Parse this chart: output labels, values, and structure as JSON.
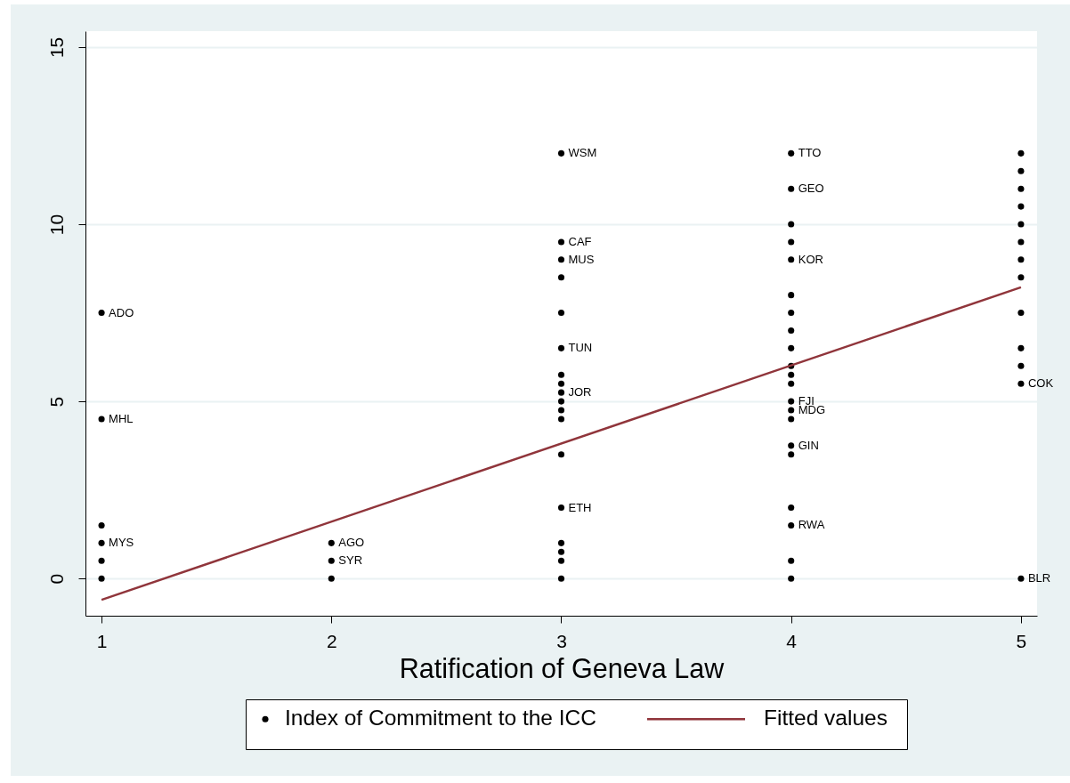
{
  "chart_data": {
    "type": "scatter",
    "xlabel": "Ratification of Geneva Law",
    "xlim": [
      0.93,
      5.07
    ],
    "ylim": [
      -1.05,
      15.45
    ],
    "xticks": [
      1,
      2,
      3,
      4,
      5
    ],
    "yticks": [
      0,
      5,
      10,
      15
    ],
    "grid": "y",
    "legend": "bottom",
    "series": [
      {
        "name": "Index of Commitment to the ICC",
        "type": "scatter",
        "color": "#000000",
        "marker": "circle",
        "x": [
          1,
          1,
          1,
          1,
          1,
          1,
          2,
          2,
          2,
          3,
          3,
          3,
          3,
          3,
          3,
          3,
          3,
          3,
          3,
          3,
          3,
          3,
          3,
          3,
          3,
          3,
          3,
          4,
          4,
          4,
          4,
          4,
          4,
          4,
          4,
          4,
          4,
          4,
          4,
          4,
          4,
          4,
          4,
          4,
          4,
          4,
          4,
          4,
          5,
          5,
          5,
          5,
          5,
          5,
          5,
          5,
          5,
          5,
          5,
          5,
          5
        ],
        "values": [
          7.5,
          4.5,
          1.5,
          1,
          0.5,
          0,
          1,
          0.5,
          0,
          12,
          9.5,
          9,
          8.5,
          7.5,
          6.5,
          5.75,
          5.5,
          5.25,
          5,
          4.75,
          4.5,
          3.5,
          2,
          1,
          0.75,
          0.5,
          0,
          12,
          11,
          10,
          9.5,
          9,
          8,
          7.5,
          7,
          6.5,
          6,
          5.75,
          5.5,
          5,
          4.75,
          4.5,
          3.75,
          3.5,
          2,
          1.5,
          0.5,
          0,
          12,
          11.5,
          11,
          10.5,
          10,
          9.5,
          9,
          8.5,
          7.5,
          6.5,
          6,
          5.5,
          0
        ]
      },
      {
        "name": "Fitted values",
        "type": "line",
        "color": "#90353b",
        "x": [
          1,
          5
        ],
        "values": [
          -0.6,
          8.22
        ]
      }
    ],
    "annotations": [
      {
        "text": "ADO",
        "x": 1,
        "y": 7.5
      },
      {
        "text": "MHL",
        "x": 1,
        "y": 4.5
      },
      {
        "text": "MYS",
        "x": 1,
        "y": 1
      },
      {
        "text": "AGO",
        "x": 2,
        "y": 1
      },
      {
        "text": "SYR",
        "x": 2,
        "y": 0.5
      },
      {
        "text": "WSM",
        "x": 3,
        "y": 12
      },
      {
        "text": "CAF",
        "x": 3,
        "y": 9.5
      },
      {
        "text": "MUS",
        "x": 3,
        "y": 9
      },
      {
        "text": "TUN",
        "x": 3,
        "y": 6.5
      },
      {
        "text": "JOR",
        "x": 3,
        "y": 5.25
      },
      {
        "text": "ETH",
        "x": 3,
        "y": 2
      },
      {
        "text": "TTO",
        "x": 4,
        "y": 12
      },
      {
        "text": "GEO",
        "x": 4,
        "y": 11
      },
      {
        "text": "KOR",
        "x": 4,
        "y": 9
      },
      {
        "text": "FJI",
        "x": 4,
        "y": 5
      },
      {
        "text": "MDG",
        "x": 4,
        "y": 4.75
      },
      {
        "text": "GIN",
        "x": 4,
        "y": 3.75
      },
      {
        "text": "RWA",
        "x": 4,
        "y": 1.5
      },
      {
        "text": "COK",
        "x": 5,
        "y": 5.5
      },
      {
        "text": "BLR",
        "x": 5,
        "y": 0
      }
    ]
  }
}
